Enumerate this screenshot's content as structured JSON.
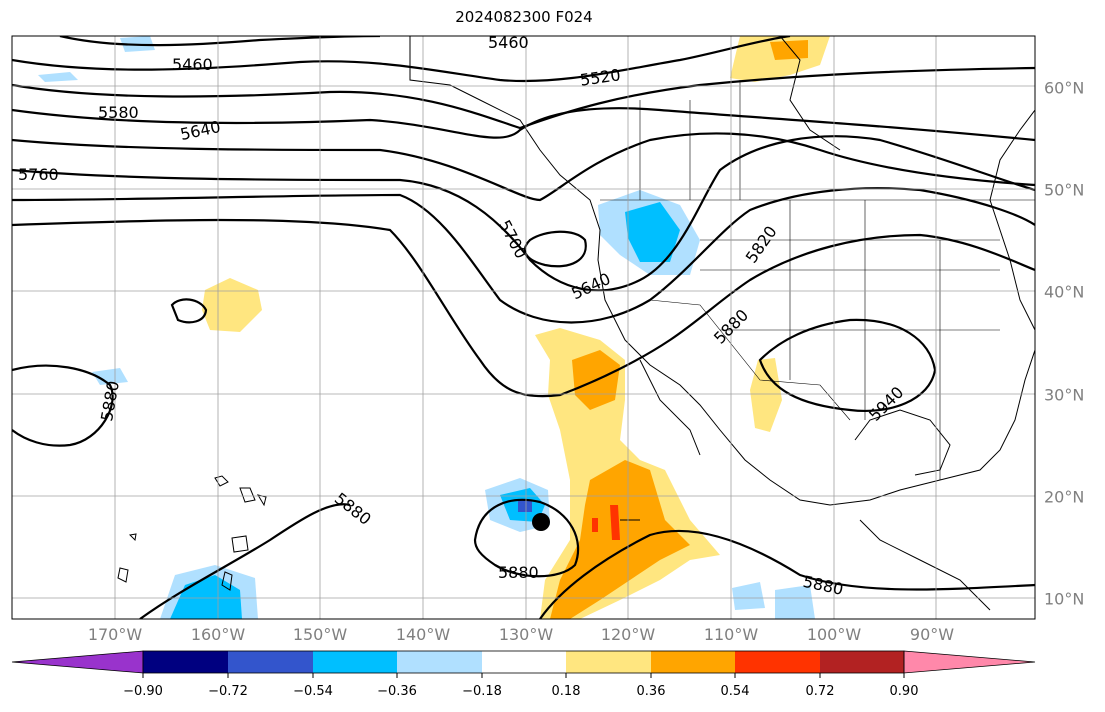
{
  "title": "2024082300 F024",
  "lon_labels": [
    "170°W",
    "160°W",
    "150°W",
    "140°W",
    "130°W",
    "120°W",
    "110°W",
    "100°W",
    "90°W"
  ],
  "lat_labels": [
    "60°N",
    "50°N",
    "40°N",
    "30°N",
    "20°N",
    "10°N"
  ],
  "contour_labels": [
    "5460",
    "5460",
    "5520",
    "5580",
    "5640",
    "5760",
    "5700",
    "5640",
    "5820",
    "5880",
    "5940",
    "5880",
    "5880",
    "5880",
    "5880"
  ],
  "colorbar": {
    "ticks": [
      "−0.90",
      "−0.72",
      "−0.54",
      "−0.36",
      "−0.18",
      "0.18",
      "0.36",
      "0.54",
      "0.72",
      "0.90"
    ],
    "colors": [
      "#9933cc",
      "#000080",
      "#3355cc",
      "#00bfff",
      "#b0e0ff",
      "#ffffff",
      "#ffe680",
      "#ffa500",
      "#ff3300",
      "#b22222",
      "#ff88aa"
    ]
  },
  "shading_colors": {
    "light_blue": "#b0e0ff",
    "cyan": "#00bfff",
    "mid_blue": "#3355cc",
    "light_yellow": "#ffe680",
    "orange": "#ffa500",
    "red": "#ff3300"
  },
  "storm_marker": "storm-center-dot"
}
